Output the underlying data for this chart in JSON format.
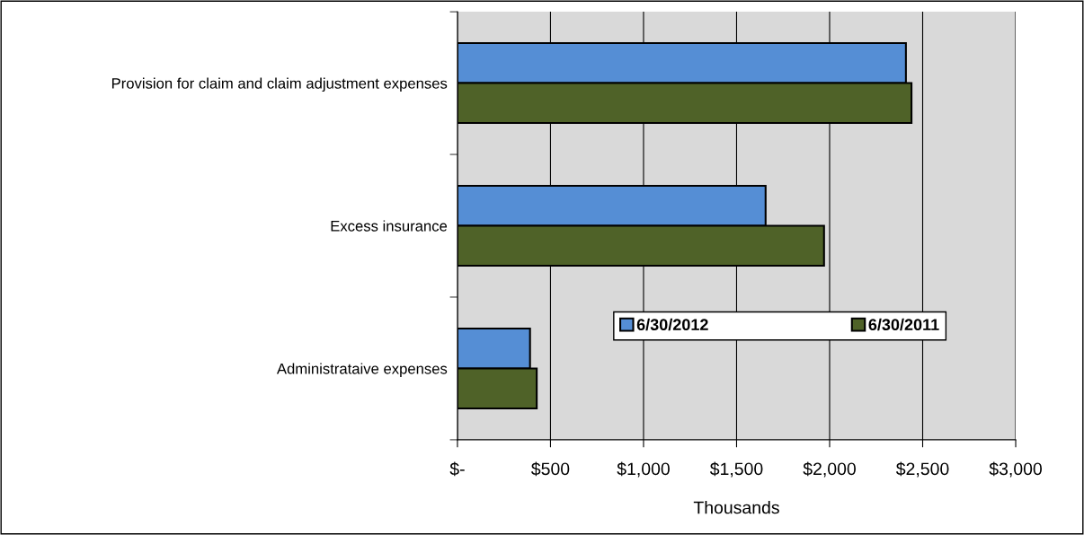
{
  "chart_data": {
    "type": "bar",
    "orientation": "horizontal",
    "xlabel": "Thousands",
    "categories": [
      "Provision for claim and claim adjustment expenses",
      "Excess insurance",
      "Administrataive expenses"
    ],
    "series": [
      {
        "name": "6/30/2012",
        "color": "#558ed5",
        "values": [
          2410,
          1656,
          390
        ]
      },
      {
        "name": "6/30/2011",
        "color": "#4f6228",
        "values": [
          2440,
          1970,
          426
        ]
      }
    ],
    "xlim": [
      0,
      3000
    ],
    "xticks": [
      {
        "value": 0,
        "label": "$-"
      },
      {
        "value": 500,
        "label": "$500"
      },
      {
        "value": 1000,
        "label": "$1,000"
      },
      {
        "value": 1500,
        "label": "$1,500"
      },
      {
        "value": 2000,
        "label": "$2,000"
      },
      {
        "value": 2500,
        "label": "$2,500"
      },
      {
        "value": 3000,
        "label": "$3,000"
      }
    ],
    "grid": "x",
    "legend": "bottom"
  }
}
